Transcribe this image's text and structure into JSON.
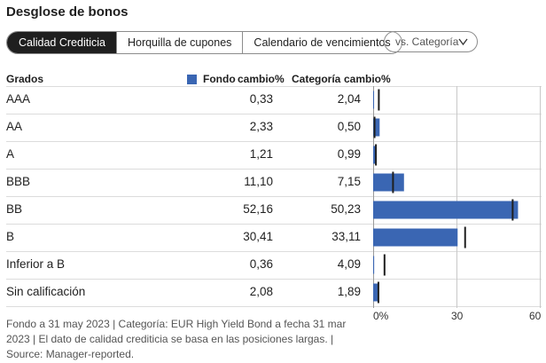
{
  "title": "Desglose de bonos",
  "tabs": [
    {
      "label": "Calidad Crediticia",
      "active": true
    },
    {
      "label": "Horquilla de cupones",
      "active": false
    },
    {
      "label": "Calendario de vencimientos",
      "active": false
    }
  ],
  "compare_select": {
    "label": "vs. Categoría",
    "icon": "chevron-down-icon"
  },
  "columns": {
    "grade": "Grados",
    "fund": "Fondo",
    "fund_change": "cambio%",
    "category": "Categoría",
    "category_change": "cambio%"
  },
  "colors": {
    "fund_bar": "#3a66b3",
    "category_marker": "#1f1f1f",
    "gridline": "#c8c8c8"
  },
  "chart_data": {
    "type": "bar",
    "orientation": "horizontal",
    "categories": [
      "AAA",
      "AA",
      "A",
      "BBB",
      "BB",
      "B",
      "Inferior a B",
      "Sin calificación"
    ],
    "series": [
      {
        "name": "Fondo",
        "values": [
          0.33,
          2.33,
          1.21,
          11.1,
          52.16,
          30.41,
          0.36,
          2.08
        ]
      },
      {
        "name": "Categoría",
        "values": [
          2.04,
          0.5,
          0.99,
          7.15,
          50.23,
          33.11,
          4.09,
          1.89
        ]
      }
    ],
    "display_values": {
      "fund": [
        "0,33",
        "2,33",
        "1,21",
        "11,10",
        "52,16",
        "30,41",
        "0,36",
        "2,08"
      ],
      "category": [
        "2,04",
        "0,50",
        "0,99",
        "7,15",
        "50,23",
        "33,11",
        "4,09",
        "1,89"
      ]
    },
    "xlim": [
      0,
      60
    ],
    "ticks": [
      0,
      30,
      60
    ],
    "tick_labels": [
      "0%",
      "30",
      "60"
    ],
    "grid": true
  },
  "footnote": "Fondo a 31 may 2023 | Categoría: EUR High Yield Bond a fecha 31 mar 2023 | El dato de calidad crediticia se basa en las posiciones largas. | Source: Manager-reported."
}
